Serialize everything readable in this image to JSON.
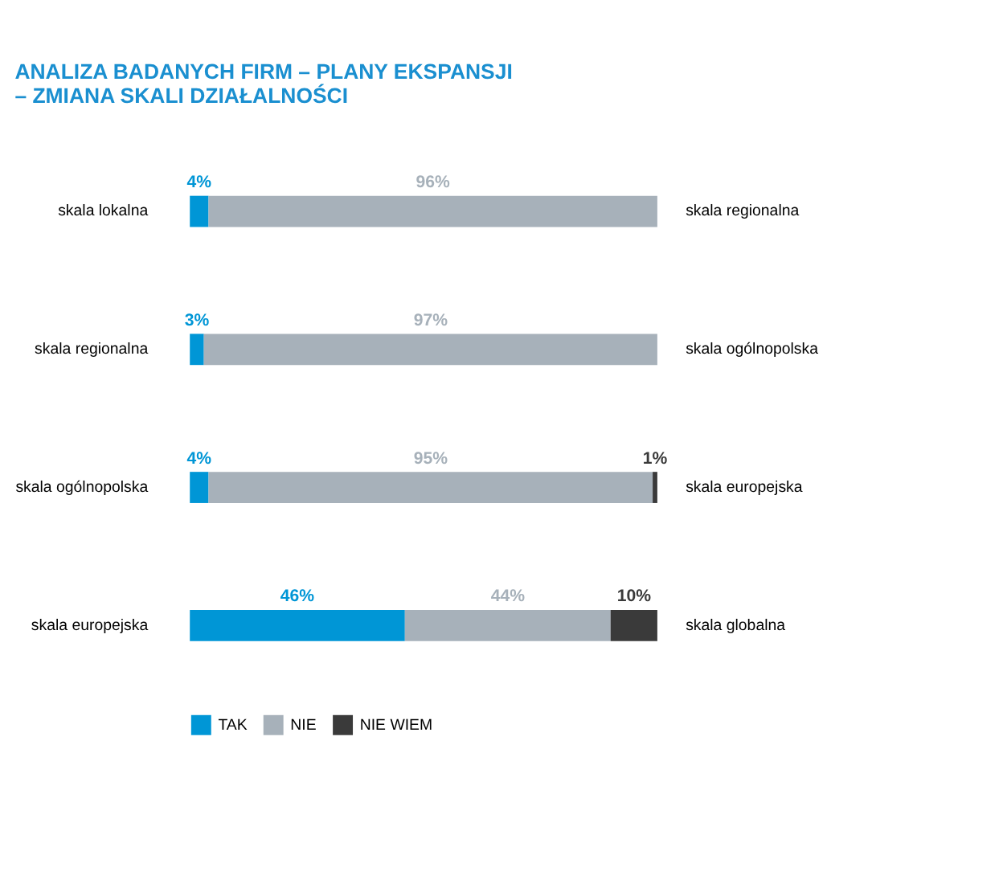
{
  "chart_data": {
    "type": "bar",
    "orientation": "horizontal",
    "stacked": true,
    "title": [
      "ANALIZA BADANYCH FIRM – PLANY EKSPANSJI",
      "– ZMIANA SKALI DZIAŁALNOŚCI"
    ],
    "categories": [
      "skala lokalna",
      "skala regionalna",
      "skala ogólnopolska",
      "skala europejska"
    ],
    "annotations": [
      "skala regionalna",
      "skala ogólnopolska",
      "skala europejska",
      "skala globalna"
    ],
    "series": [
      {
        "name": "TAK",
        "color": "#0096d6",
        "values": [
          4,
          3,
          4,
          46
        ],
        "value_labels": [
          "4%",
          "3%",
          "4%",
          "46%"
        ]
      },
      {
        "name": "NIE",
        "color": "#a7b1ba",
        "values": [
          96,
          97,
          95,
          44
        ],
        "value_labels": [
          "96%",
          "97%",
          "95%",
          "44%"
        ]
      },
      {
        "name": "NIE WIEM",
        "color": "#3a3a3a",
        "values": [
          null,
          null,
          1,
          10
        ],
        "value_labels": [
          null,
          null,
          "1%",
          "10%"
        ]
      }
    ],
    "legend": "bottom",
    "grid": false,
    "tick_labels": "y"
  }
}
